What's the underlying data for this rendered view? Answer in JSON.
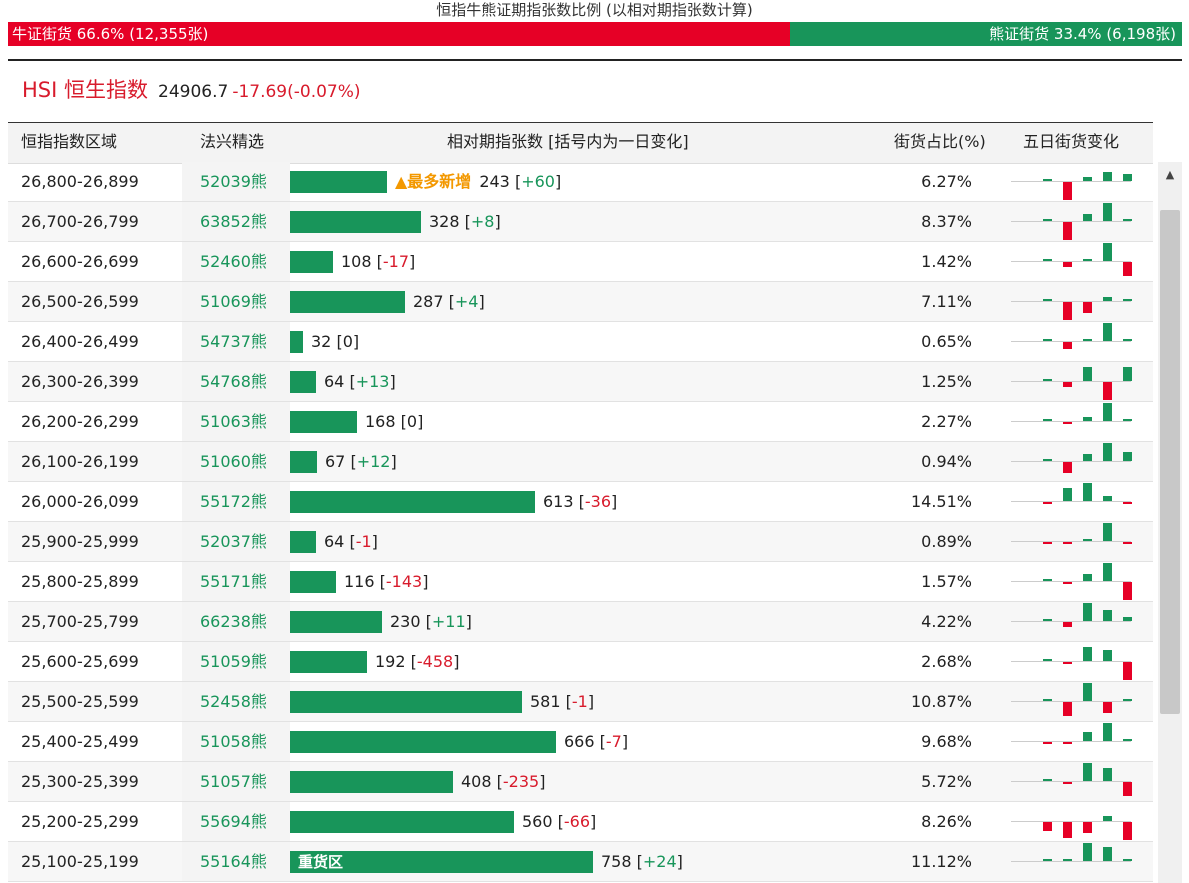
{
  "title": "恒指牛熊证期指张数比例 (以相对期指张数计算)",
  "ratio": {
    "bull_label": "牛证街货 66.6% (12,355张)",
    "bear_label": "熊证街货 33.4% (6,198张)",
    "bull_fraction": 0.666,
    "bull_color": "#e60026",
    "bear_color": "#18955a"
  },
  "index": {
    "name": "HSI 恒生指数",
    "price": "24906.7",
    "change": "-17.69(-0.07%)"
  },
  "table": {
    "headers": {
      "range": "恒指指数区域",
      "code": "法兴精选",
      "contracts": "相对期指张数 [括号内为一日变化]",
      "share": "街货占比(%)",
      "five_day": "五日街货变化"
    },
    "rows": [
      {
        "range": "26,800-26,899",
        "code": "52039熊",
        "count": 243,
        "tag": "▲最多新增",
        "label": "",
        "change": "+60",
        "share": "6.27%",
        "mini": [
          0,
          -1,
          0.2,
          0.5,
          0.4
        ]
      },
      {
        "range": "26,700-26,799",
        "code": "63852熊",
        "count": 328,
        "tag": "",
        "label": "",
        "change": "+8",
        "share": "8.37%",
        "mini": [
          0,
          -1,
          0.4,
          1,
          0.1
        ]
      },
      {
        "range": "26,600-26,699",
        "code": "52460熊",
        "count": 108,
        "tag": "",
        "label": "",
        "change": "-17",
        "share": "1.42%",
        "mini": [
          0,
          -0.3,
          0.1,
          1,
          -0.8
        ]
      },
      {
        "range": "26,500-26,599",
        "code": "51069熊",
        "count": 287,
        "tag": "",
        "label": "",
        "change": "+4",
        "share": "7.11%",
        "mini": [
          0,
          -1,
          -0.6,
          0.2,
          0.1
        ]
      },
      {
        "range": "26,400-26,499",
        "code": "54737熊",
        "count": 32,
        "tag": "",
        "label": "",
        "change": "0",
        "share": "0.65%",
        "mini": [
          0,
          -0.4,
          0.1,
          1,
          0.1
        ]
      },
      {
        "range": "26,300-26,399",
        "code": "54768熊",
        "count": 64,
        "tag": "",
        "label": "",
        "change": "+13",
        "share": "1.25%",
        "mini": [
          0,
          -0.3,
          0.8,
          -1,
          0.8
        ]
      },
      {
        "range": "26,200-26,299",
        "code": "51063熊",
        "count": 168,
        "tag": "",
        "label": "",
        "change": "0",
        "share": "2.27%",
        "mini": [
          0,
          -0.1,
          0.2,
          1,
          0.1
        ]
      },
      {
        "range": "26,100-26,199",
        "code": "51060熊",
        "count": 67,
        "tag": "",
        "label": "",
        "change": "+12",
        "share": "0.94%",
        "mini": [
          0,
          -0.6,
          0.4,
          1,
          0.5
        ]
      },
      {
        "range": "26,000-26,099",
        "code": "55172熊",
        "count": 613,
        "tag": "",
        "label": "",
        "change": "-36",
        "share": "14.51%",
        "mini": [
          -0.1,
          0.7,
          1,
          0.3,
          -0.1
        ]
      },
      {
        "range": "25,900-25,999",
        "code": "52037熊",
        "count": 64,
        "tag": "",
        "label": "",
        "change": "-1",
        "share": "0.89%",
        "mini": [
          -0.1,
          -0.1,
          0.1,
          1,
          -0.1
        ]
      },
      {
        "range": "25,800-25,899",
        "code": "55171熊",
        "count": 116,
        "tag": "",
        "label": "",
        "change": "-143",
        "share": "1.57%",
        "mini": [
          0,
          -0.1,
          0.4,
          1,
          -1
        ]
      },
      {
        "range": "25,700-25,799",
        "code": "66238熊",
        "count": 230,
        "tag": "",
        "label": "",
        "change": "+11",
        "share": "4.22%",
        "mini": [
          0,
          -0.3,
          1,
          0.6,
          0.2
        ]
      },
      {
        "range": "25,600-25,699",
        "code": "51059熊",
        "count": 192,
        "tag": "",
        "label": "",
        "change": "-458",
        "share": "2.68%",
        "mini": [
          0,
          -0.1,
          0.8,
          0.6,
          -1
        ]
      },
      {
        "range": "25,500-25,599",
        "code": "52458熊",
        "count": 581,
        "tag": "",
        "label": "",
        "change": "-1",
        "share": "10.87%",
        "mini": [
          0,
          -0.8,
          1,
          -0.6,
          0.1
        ]
      },
      {
        "range": "25,400-25,499",
        "code": "51058熊",
        "count": 666,
        "tag": "",
        "label": "",
        "change": "-7",
        "share": "9.68%",
        "mini": [
          -0.1,
          -0.1,
          0.5,
          1,
          0.1
        ]
      },
      {
        "range": "25,300-25,399",
        "code": "51057熊",
        "count": 408,
        "tag": "",
        "label": "",
        "change": "-235",
        "share": "5.72%",
        "mini": [
          0,
          -0.1,
          1,
          0.7,
          -0.8
        ]
      },
      {
        "range": "25,200-25,299",
        "code": "55694熊",
        "count": 560,
        "tag": "",
        "label": "",
        "change": "-66",
        "share": "8.26%",
        "mini": [
          -0.5,
          -0.9,
          -0.6,
          0.3,
          -1
        ]
      },
      {
        "range": "25,100-25,199",
        "code": "55164熊",
        "count": 758,
        "tag": "",
        "label": "重货区",
        "change": "+24",
        "share": "11.12%",
        "mini": [
          0,
          0.1,
          1,
          0.8,
          0.1
        ]
      }
    ]
  },
  "scrollbar": {
    "up_glyph": "▲"
  }
}
